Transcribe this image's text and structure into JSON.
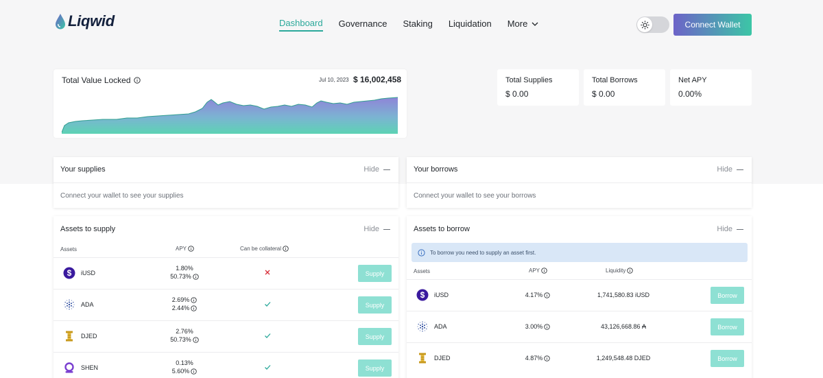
{
  "brand": {
    "name": "Liqwid"
  },
  "nav": {
    "items": [
      {
        "label": "Dashboard",
        "active": true
      },
      {
        "label": "Governance",
        "active": false
      },
      {
        "label": "Staking",
        "active": false
      },
      {
        "label": "Liquidation",
        "active": false
      }
    ],
    "more_label": "More"
  },
  "header": {
    "connect_label": "Connect Wallet",
    "theme": "light"
  },
  "tvl": {
    "title": "Total Value Locked",
    "date": "Jul 10, 2023",
    "value": "$ 16,002,458"
  },
  "stats": [
    {
      "label": "Total Supplies",
      "value": "$ 0.00"
    },
    {
      "label": "Total Borrows",
      "value": "$ 0.00"
    },
    {
      "label": "Net APY",
      "value": "0.00%"
    }
  ],
  "your_supplies": {
    "title": "Your supplies",
    "hide_label": "Hide",
    "message": "Connect your wallet to see your supplies"
  },
  "your_borrows": {
    "title": "Your borrows",
    "hide_label": "Hide",
    "message": "Connect your wallet to see your borrows"
  },
  "assets_to_supply": {
    "title": "Assets to supply",
    "hide_label": "Hide",
    "columns": {
      "assets": "Assets",
      "apy": "APY",
      "collateral": "Can be collateral"
    },
    "rows": [
      {
        "asset": "iUSD",
        "icon": "iusd-icon",
        "apy1": "1.80%",
        "apy2": "50.73%",
        "collateral": false,
        "action": "Supply"
      },
      {
        "asset": "ADA",
        "icon": "ada-icon",
        "apy1": "2.69%",
        "apy2": "2.44%",
        "collateral": true,
        "action": "Supply"
      },
      {
        "asset": "DJED",
        "icon": "djed-icon",
        "apy1": "2.76%",
        "apy2": "50.73%",
        "collateral": true,
        "action": "Supply"
      },
      {
        "asset": "SHEN",
        "icon": "shen-icon",
        "apy1": "0.13%",
        "apy2": "5.60%",
        "collateral": true,
        "action": "Supply"
      }
    ]
  },
  "assets_to_borrow": {
    "title": "Assets to borrow",
    "hide_label": "Hide",
    "info": "To borrow you need to supply an asset first.",
    "columns": {
      "assets": "Assets",
      "apy": "APY",
      "liquidity": "Liquidity"
    },
    "rows": [
      {
        "asset": "iUSD",
        "icon": "iusd-icon",
        "apy": "4.17%",
        "liquidity": "1,741,580.83 iUSD",
        "action": "Borrow"
      },
      {
        "asset": "ADA",
        "icon": "ada-icon",
        "apy": "3.00%",
        "liquidity": "43,126,668.86 ₳",
        "action": "Borrow"
      },
      {
        "asset": "DJED",
        "icon": "djed-icon",
        "apy": "4.87%",
        "liquidity": "1,249,548.48 DJED",
        "action": "Borrow"
      }
    ]
  },
  "colors": {
    "accent": "#2aa89a",
    "button_disabled": "#8ee0d3",
    "connect_start": "#6d63c8",
    "connect_end": "#3cc6a6"
  }
}
